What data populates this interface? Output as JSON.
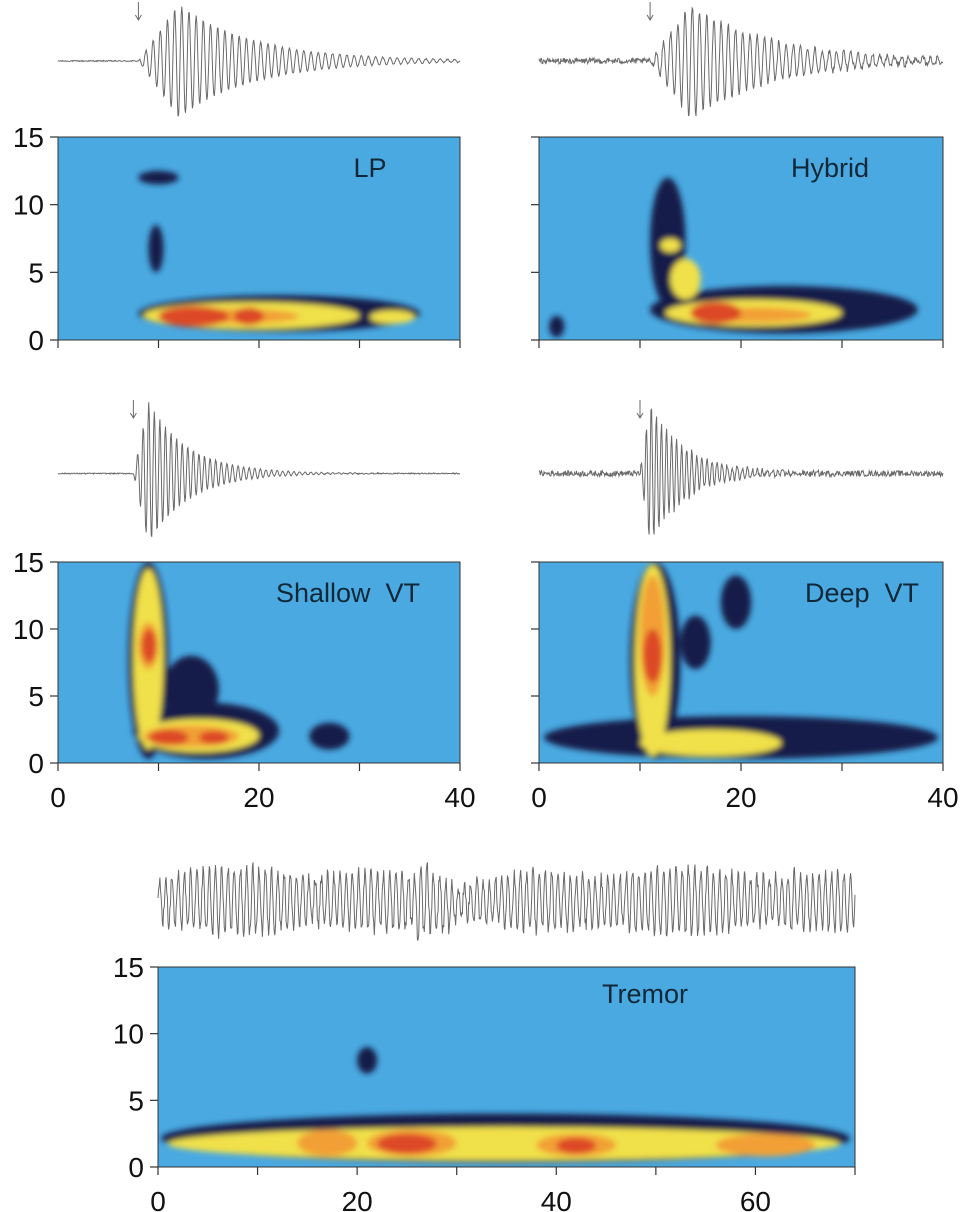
{
  "colors": {
    "background": "#4aa9e0",
    "level_1": "#141a4a",
    "level_2": "#f0e04a",
    "level_3": "#f2a035",
    "level_4": "#dd4a25",
    "trace": "#6a6a6a",
    "axis": "#333333"
  },
  "chart_data": [
    {
      "id": "lp",
      "type": "heatmap",
      "title": "LP",
      "xlim": [
        0,
        40
      ],
      "ylim": [
        0,
        15
      ],
      "xticks": [
        0,
        10,
        20,
        30,
        40
      ],
      "xtick_labels": [],
      "yticks": [
        0,
        5,
        10,
        15
      ],
      "ytick_labels": [
        "0",
        "5",
        "10",
        "15"
      ],
      "onset_arrow_x": 8,
      "waveform": {
        "onset": 8,
        "end": 40,
        "peak_time": 12,
        "peak_amp": 1.0,
        "decay": 7.5,
        "cycles_per_unit": 1.4,
        "noise": 0.02
      },
      "blobs": [
        {
          "x": [
            8.0,
            12.0
          ],
          "y": [
            11.5,
            12.5
          ],
          "level": 1
        },
        {
          "x": [
            9.0,
            10.5
          ],
          "y": [
            5.0,
            8.5
          ],
          "level": 1
        },
        {
          "x": [
            8.0,
            36.0
          ],
          "y": [
            0.6,
            3.3
          ],
          "level": 1
        },
        {
          "x": [
            8.5,
            30.0
          ],
          "y": [
            0.8,
            2.8
          ],
          "level": 2
        },
        {
          "x": [
            11.0,
            24.0
          ],
          "y": [
            1.2,
            2.3
          ],
          "level": 3
        },
        {
          "x": [
            10.0,
            17.0
          ],
          "y": [
            1.0,
            2.5
          ],
          "level": 4
        },
        {
          "x": [
            17.5,
            20.5
          ],
          "y": [
            1.1,
            2.4
          ],
          "level": 4
        },
        {
          "x": [
            31.0,
            35.5
          ],
          "y": [
            1.2,
            2.2
          ],
          "level": 2
        }
      ]
    },
    {
      "id": "hybrid",
      "type": "heatmap",
      "title": "Hybrid",
      "xlim": [
        0,
        40
      ],
      "ylim": [
        0,
        15
      ],
      "xticks": [
        0,
        10,
        20,
        30,
        40
      ],
      "xtick_labels": [],
      "yticks": [
        0,
        5,
        10,
        15
      ],
      "ytick_labels": [],
      "onset_arrow_x": 11,
      "waveform": {
        "onset": 11,
        "end": 40,
        "peak_time": 15,
        "peak_amp": 1.0,
        "decay": 8.0,
        "cycles_per_unit": 1.4,
        "noise": 0.1
      },
      "blobs": [
        {
          "x": [
            11.0,
            14.5
          ],
          "y": [
            2.5,
            12.0
          ],
          "level": 1
        },
        {
          "x": [
            11.0,
            37.5
          ],
          "y": [
            0.5,
            4.0
          ],
          "level": 1
        },
        {
          "x": [
            1.0,
            2.5
          ],
          "y": [
            0.2,
            1.8
          ],
          "level": 1
        },
        {
          "x": [
            12.0,
            14.0
          ],
          "y": [
            6.5,
            7.5
          ],
          "level": 2
        },
        {
          "x": [
            12.5,
            30.0
          ],
          "y": [
            1.0,
            3.0
          ],
          "level": 2
        },
        {
          "x": [
            13.0,
            16.0
          ],
          "y": [
            3.0,
            6.0
          ],
          "level": 2
        },
        {
          "x": [
            15.0,
            27.0
          ],
          "y": [
            1.3,
            2.4
          ],
          "level": 3
        },
        {
          "x": [
            15.0,
            20.0
          ],
          "y": [
            1.2,
            2.8
          ],
          "level": 4
        }
      ]
    },
    {
      "id": "shallow-vt",
      "type": "heatmap",
      "title": "Shallow  VT",
      "xlim": [
        0,
        40
      ],
      "ylim": [
        0,
        15
      ],
      "xticks": [
        0,
        10,
        20,
        30,
        40
      ],
      "xtick_labels": [
        "0",
        "",
        "20",
        "",
        "40"
      ],
      "yticks": [
        0,
        5,
        10,
        15
      ],
      "ytick_labels": [
        "0",
        "5",
        "10",
        "15"
      ],
      "onset_arrow_x": 7.5,
      "waveform": {
        "onset": 7.5,
        "end": 40,
        "peak_time": 9,
        "peak_amp": 1.0,
        "decay": 4.0,
        "cycles_per_unit": 1.8,
        "noise": 0.015
      },
      "blobs": [
        {
          "x": [
            7.0,
            11.0
          ],
          "y": [
            0.3,
            15.0
          ],
          "level": 1
        },
        {
          "x": [
            7.5,
            22.0
          ],
          "y": [
            0.3,
            4.5
          ],
          "level": 1
        },
        {
          "x": [
            10.5,
            16.0
          ],
          "y": [
            3.0,
            8.0
          ],
          "level": 1
        },
        {
          "x": [
            25.0,
            29.0
          ],
          "y": [
            1.0,
            3.0
          ],
          "level": 1
        },
        {
          "x": [
            7.5,
            10.5
          ],
          "y": [
            1.0,
            14.5
          ],
          "level": 2
        },
        {
          "x": [
            8.0,
            20.0
          ],
          "y": [
            0.8,
            3.3
          ],
          "level": 2
        },
        {
          "x": [
            8.0,
            10.0
          ],
          "y": [
            7.0,
            10.5
          ],
          "level": 3
        },
        {
          "x": [
            8.5,
            18.0
          ],
          "y": [
            1.2,
            2.8
          ],
          "level": 3
        },
        {
          "x": [
            8.3,
            9.8
          ],
          "y": [
            7.5,
            10.0
          ],
          "level": 4
        },
        {
          "x": [
            9.0,
            13.0
          ],
          "y": [
            1.3,
            2.5
          ],
          "level": 4
        },
        {
          "x": [
            14.0,
            17.0
          ],
          "y": [
            1.4,
            2.4
          ],
          "level": 4
        }
      ]
    },
    {
      "id": "deep-vt",
      "type": "heatmap",
      "title": "Deep  VT",
      "xlim": [
        0,
        40
      ],
      "ylim": [
        0,
        15
      ],
      "xticks": [
        0,
        10,
        20,
        30,
        40
      ],
      "xtick_labels": [
        "0",
        "",
        "20",
        "",
        "40"
      ],
      "yticks": [
        0,
        5,
        10,
        15
      ],
      "ytick_labels": [],
      "onset_arrow_x": 10,
      "waveform": {
        "onset": 10,
        "end": 40,
        "peak_time": 11,
        "peak_amp": 1.0,
        "decay": 3.5,
        "cycles_per_unit": 2.0,
        "noise": 0.08
      },
      "blobs": [
        {
          "x": [
            9.0,
            14.0
          ],
          "y": [
            0.3,
            15.0
          ],
          "level": 1
        },
        {
          "x": [
            0.5,
            39.5
          ],
          "y": [
            0.3,
            3.5
          ],
          "level": 1
        },
        {
          "x": [
            14.0,
            17.0
          ],
          "y": [
            7.0,
            11.0
          ],
          "level": 1
        },
        {
          "x": [
            18.0,
            21.0
          ],
          "y": [
            10.0,
            14.0
          ],
          "level": 1
        },
        {
          "x": [
            9.5,
            13.0
          ],
          "y": [
            0.5,
            14.8
          ],
          "level": 2
        },
        {
          "x": [
            10.0,
            24.0
          ],
          "y": [
            0.5,
            2.5
          ],
          "level": 2
        },
        {
          "x": [
            10.0,
            12.5
          ],
          "y": [
            5.0,
            14.0
          ],
          "level": 3
        },
        {
          "x": [
            10.3,
            12.2
          ],
          "y": [
            6.0,
            10.0
          ],
          "level": 4
        }
      ]
    },
    {
      "id": "tremor",
      "type": "heatmap",
      "title": "Tremor",
      "xlim": [
        0,
        70
      ],
      "ylim": [
        0,
        15
      ],
      "xticks": [
        0,
        10,
        20,
        30,
        40,
        50,
        60,
        70
      ],
      "xtick_labels": [
        "0",
        "",
        "20",
        "",
        "40",
        "",
        "60",
        ""
      ],
      "yticks": [
        0,
        5,
        10,
        15
      ],
      "ytick_labels": [
        "0",
        "5",
        "10",
        "15"
      ],
      "onset_arrow_x": null,
      "waveform": {
        "onset": 0,
        "end": 70,
        "peak_time": 0,
        "peak_amp": 0,
        "decay": 0,
        "cycles_per_unit": 1.6,
        "noise": 0.35,
        "continuous": true
      },
      "blobs": [
        {
          "x": [
            0.3,
            69.5
          ],
          "y": [
            0.3,
            4.0
          ],
          "level": 1
        },
        {
          "x": [
            20.0,
            22.0
          ],
          "y": [
            7.0,
            9.0
          ],
          "level": 1
        },
        {
          "x": [
            1.0,
            68.5
          ],
          "y": [
            0.5,
            3.0
          ],
          "level": 2
        },
        {
          "x": [
            14.0,
            20.0
          ],
          "y": [
            0.8,
            2.8
          ],
          "level": 3
        },
        {
          "x": [
            21.0,
            30.0
          ],
          "y": [
            0.8,
            2.8
          ],
          "level": 3
        },
        {
          "x": [
            38.0,
            46.0
          ],
          "y": [
            0.8,
            2.5
          ],
          "level": 3
        },
        {
          "x": [
            56.0,
            66.0
          ],
          "y": [
            0.8,
            2.5
          ],
          "level": 3
        },
        {
          "x": [
            22.0,
            28.0
          ],
          "y": [
            1.0,
            2.5
          ],
          "level": 4
        },
        {
          "x": [
            40.0,
            44.0
          ],
          "y": [
            1.0,
            2.2
          ],
          "level": 4
        }
      ]
    }
  ]
}
